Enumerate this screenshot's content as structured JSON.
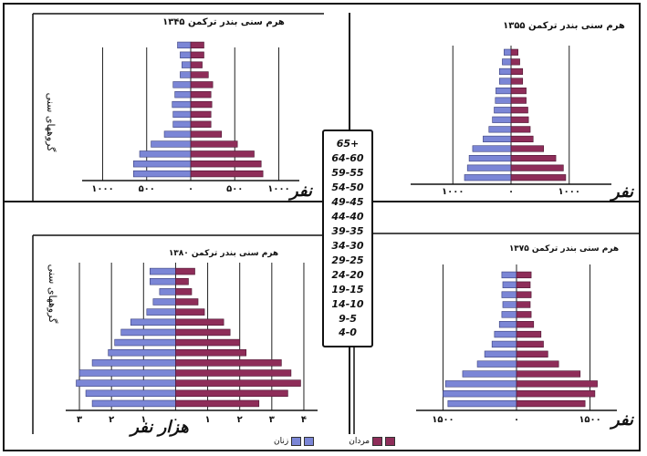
{
  "colors": {
    "female": "#7b86d6",
    "male": "#8e2d59",
    "axis": "#111111"
  },
  "age_groups": [
    "65+",
    "64-60",
    "59-55",
    "54-50",
    "49-45",
    "44-40",
    "39-35",
    "34-30",
    "29-25",
    "24-20",
    "19-15",
    "14-10",
    "9-5",
    "4-0"
  ],
  "legend": {
    "male_label": "مردان",
    "female_label": "زنان"
  },
  "chart_data": [
    {
      "type": "bar",
      "title": "هرم سنی بندر ترکمن ۱۳۴۵",
      "unit": "نفر",
      "ylabel": "گروههای سنی",
      "categories": [
        "65+",
        "64-60",
        "59-55",
        "54-50",
        "49-45",
        "44-40",
        "39-35",
        "34-30",
        "29-25",
        "24-20",
        "19-15",
        "14-10",
        "9-5",
        "4-0"
      ],
      "xlim": [
        -1150,
        1150
      ],
      "ticks": [
        -1000,
        -500,
        0,
        500,
        1000
      ],
      "tick_labels": [
        "۱۰۰۰",
        "۵۰۰",
        "۰",
        "۵۰۰",
        "۱۰۰۰"
      ],
      "series": [
        {
          "name": "مردان",
          "values": [
            150,
            150,
            130,
            200,
            250,
            230,
            240,
            230,
            230,
            350,
            530,
            720,
            800,
            820
          ]
        },
        {
          "name": "زنان",
          "values": [
            150,
            120,
            100,
            120,
            200,
            180,
            210,
            200,
            200,
            300,
            450,
            580,
            650,
            650
          ]
        }
      ]
    },
    {
      "type": "bar",
      "title": "هرم سنی بندر ترکمن ۱۳۵۵",
      "unit": "نفر",
      "ylabel": "",
      "categories": [
        "65+",
        "64-60",
        "59-55",
        "54-50",
        "49-45",
        "44-40",
        "39-35",
        "34-30",
        "29-25",
        "24-20",
        "19-15",
        "14-10",
        "9-5",
        "4-0"
      ],
      "xlim": [
        -1600,
        1600
      ],
      "ticks": [
        -1000,
        0,
        1000
      ],
      "tick_labels": [
        "۱۰۰۰",
        "۰",
        "۱۰۰۰"
      ],
      "series": [
        {
          "name": "مردان",
          "values": [
            120,
            150,
            200,
            200,
            260,
            260,
            290,
            300,
            330,
            380,
            560,
            770,
            900,
            940
          ]
        },
        {
          "name": "زنان",
          "values": [
            120,
            150,
            200,
            200,
            260,
            270,
            290,
            320,
            380,
            480,
            660,
            720,
            750,
            800
          ]
        }
      ]
    },
    {
      "type": "bar",
      "title": "هرم سنی بندر ترکمن ۱۳۸۰",
      "unit": "هزار نفر",
      "ylabel": "گروههای سنی",
      "categories": [
        "65+",
        "64-60",
        "59-55",
        "54-50",
        "49-45",
        "44-40",
        "39-35",
        "34-30",
        "29-25",
        "24-20",
        "19-15",
        "14-10",
        "9-5",
        "4-0"
      ],
      "xlim": [
        -3.2,
        4.2
      ],
      "ticks": [
        -3,
        -2,
        -1,
        0,
        1,
        2,
        3,
        4
      ],
      "tick_labels": [
        "۳",
        "۲",
        "۱",
        "۰",
        "۱",
        "۲",
        "۳",
        "۴"
      ],
      "series": [
        {
          "name": "مردان",
          "values": [
            0.6,
            0.4,
            0.5,
            0.7,
            0.9,
            1.5,
            1.7,
            2.0,
            2.2,
            3.3,
            3.6,
            3.9,
            3.5,
            2.6
          ]
        },
        {
          "name": "زنان",
          "values": [
            0.8,
            0.8,
            0.5,
            0.7,
            0.9,
            1.4,
            1.7,
            1.9,
            2.1,
            2.6,
            3.0,
            3.1,
            2.8,
            2.6
          ]
        }
      ]
    },
    {
      "type": "bar",
      "title": "هرم سنی بندر ترکمن ۱۳۷۵",
      "unit": "نفر",
      "ylabel": "",
      "categories": [
        "65+",
        "64-60",
        "59-55",
        "54-50",
        "49-45",
        "44-40",
        "39-35",
        "34-30",
        "29-25",
        "24-20",
        "19-15",
        "14-10",
        "9-5",
        "4-0"
      ],
      "xlim": [
        -1900,
        1900
      ],
      "ticks": [
        -1500,
        0,
        1500
      ],
      "tick_labels": [
        "۱۵۰۰",
        "۰",
        "۱۵۰۰"
      ],
      "series": [
        {
          "name": "مردان",
          "values": [
            300,
            280,
            300,
            280,
            300,
            350,
            500,
            550,
            640,
            860,
            1300,
            1650,
            1600,
            1400
          ]
        },
        {
          "name": "زنان",
          "values": [
            300,
            280,
            300,
            280,
            300,
            350,
            450,
            500,
            650,
            800,
            1100,
            1450,
            1500,
            1400
          ]
        }
      ]
    }
  ]
}
